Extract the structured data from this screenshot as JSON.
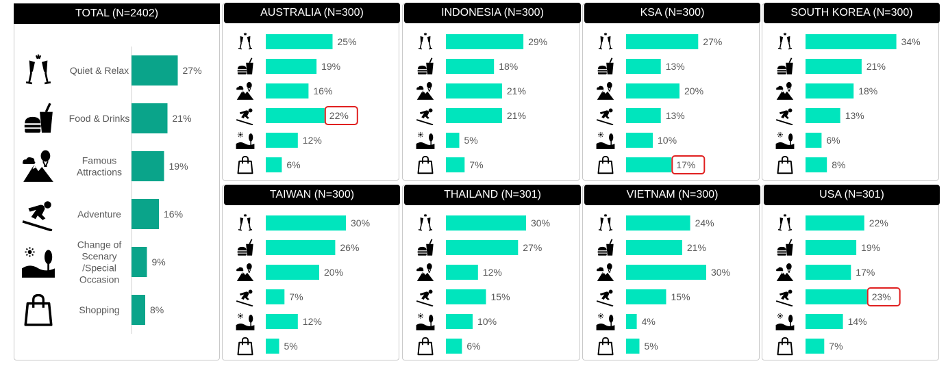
{
  "total": {
    "title": "TOTAL (N=2402)",
    "bar_color": "#0aa48a",
    "categories": [
      {
        "icon": "champagne-icon",
        "label": [
          "Quiet & Relax"
        ],
        "value": 27
      },
      {
        "icon": "food-drinks-icon",
        "label": [
          "Food & Drinks"
        ],
        "value": 21
      },
      {
        "icon": "attractions-icon",
        "label": [
          "Famous",
          "Attractions"
        ],
        "value": 19
      },
      {
        "icon": "skiing-icon",
        "label": [
          "Adventure"
        ],
        "value": 16
      },
      {
        "icon": "scenery-icon",
        "label": [
          "Change of",
          "Scenary",
          "/Special",
          "Occasion"
        ],
        "value": 9
      },
      {
        "icon": "shopping-bag-icon",
        "label": [
          "Shopping"
        ],
        "value": 8
      }
    ]
  },
  "country_bar_color": "#00e5bd",
  "highlight_color": "#e02020",
  "countries": [
    {
      "title": "AUSTRALIA (N=300)",
      "values": [
        25,
        19,
        16,
        22,
        12,
        6
      ],
      "highlight": 3
    },
    {
      "title": "INDONESIA (N=300)",
      "values": [
        29,
        18,
        21,
        21,
        5,
        7
      ],
      "highlight": null
    },
    {
      "title": "KSA (N=300)",
      "values": [
        27,
        13,
        20,
        13,
        10,
        17
      ],
      "highlight": 5
    },
    {
      "title": "SOUTH KOREA (N=300)",
      "values": [
        34,
        21,
        18,
        13,
        6,
        8
      ],
      "highlight": null
    },
    {
      "title": "TAIWAN (N=300)",
      "values": [
        30,
        26,
        20,
        7,
        12,
        5
      ],
      "highlight": null
    },
    {
      "title": "THAILAND (N=301)",
      "values": [
        30,
        27,
        12,
        15,
        10,
        6
      ],
      "highlight": null
    },
    {
      "title": "VIETNAM (N=300)",
      "values": [
        24,
        21,
        30,
        15,
        4,
        5
      ],
      "highlight": null
    },
    {
      "title": "USA (N=301)",
      "values": [
        22,
        19,
        17,
        23,
        14,
        7
      ],
      "highlight": 3
    }
  ],
  "chart_data": {
    "type": "bar",
    "orientation": "horizontal",
    "unit": "%",
    "categories": [
      "Quiet & Relax",
      "Food & Drinks",
      "Famous Attractions",
      "Adventure",
      "Change of Scenary /Special Occasion",
      "Shopping"
    ],
    "series": [
      {
        "name": "TOTAL (N=2402)",
        "values": [
          27,
          21,
          19,
          16,
          9,
          8
        ]
      },
      {
        "name": "AUSTRALIA (N=300)",
        "values": [
          25,
          19,
          16,
          22,
          12,
          6
        ]
      },
      {
        "name": "INDONESIA (N=300)",
        "values": [
          29,
          18,
          21,
          21,
          5,
          7
        ]
      },
      {
        "name": "KSA (N=300)",
        "values": [
          27,
          13,
          20,
          13,
          10,
          17
        ]
      },
      {
        "name": "SOUTH KOREA (N=300)",
        "values": [
          34,
          21,
          18,
          13,
          6,
          8
        ]
      },
      {
        "name": "TAIWAN (N=300)",
        "values": [
          30,
          26,
          20,
          7,
          12,
          5
        ]
      },
      {
        "name": "THAILAND (N=301)",
        "values": [
          30,
          27,
          12,
          15,
          10,
          6
        ]
      },
      {
        "name": "VIETNAM (N=300)",
        "values": [
          24,
          21,
          30,
          15,
          4,
          5
        ]
      },
      {
        "name": "USA (N=301)",
        "values": [
          22,
          19,
          17,
          23,
          14,
          7
        ]
      }
    ]
  }
}
